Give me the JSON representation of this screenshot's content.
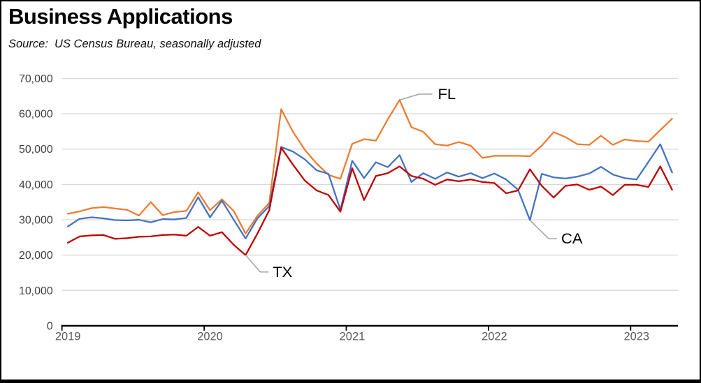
{
  "chart_data": {
    "type": "line",
    "title": "Business Applications",
    "subtitle": "Source:  US Census Bureau, seasonally adjusted",
    "categories": [
      "2019-01",
      "2019-02",
      "2019-03",
      "2019-04",
      "2019-05",
      "2019-06",
      "2019-07",
      "2019-08",
      "2019-09",
      "2019-10",
      "2019-11",
      "2019-12",
      "2020-01",
      "2020-02",
      "2020-03",
      "2020-04",
      "2020-05",
      "2020-06",
      "2020-07",
      "2020-08",
      "2020-09",
      "2020-10",
      "2020-11",
      "2020-12",
      "2021-01",
      "2021-02",
      "2021-03",
      "2021-04",
      "2021-05",
      "2021-06",
      "2021-07",
      "2021-08",
      "2021-09",
      "2021-10",
      "2021-11",
      "2021-12",
      "2022-01",
      "2022-02",
      "2022-03",
      "2022-04",
      "2022-05",
      "2022-06",
      "2022-07",
      "2022-08",
      "2022-09",
      "2022-10",
      "2022-11",
      "2022-12",
      "2023-01",
      "2023-02",
      "2023-03",
      "2023-04"
    ],
    "series": [
      {
        "name": "FL",
        "color": "#ED7D31",
        "values": [
          31700,
          32400,
          33300,
          33600,
          33200,
          32800,
          31200,
          35000,
          31300,
          32200,
          32500,
          37800,
          32700,
          35800,
          32500,
          26100,
          31100,
          34800,
          61300,
          54900,
          49800,
          45900,
          42700,
          41600,
          51500,
          52800,
          52400,
          58400,
          63900,
          56200,
          54900,
          51400,
          51000,
          52000,
          51000,
          47500,
          48100,
          48100,
          48100,
          48000,
          51000,
          54800,
          53400,
          51400,
          51200,
          53800,
          51200,
          52700,
          52300,
          52100,
          55400,
          58600
        ]
      },
      {
        "name": "CA",
        "color": "#4472C4",
        "values": [
          28100,
          30300,
          30700,
          30400,
          29900,
          29800,
          30000,
          29300,
          30200,
          30100,
          30500,
          36400,
          30700,
          35400,
          30000,
          24700,
          30400,
          33900,
          50600,
          49300,
          47100,
          44000,
          43000,
          32800,
          46700,
          41800,
          46300,
          44900,
          48300,
          40700,
          43200,
          41600,
          43400,
          42200,
          43200,
          41800,
          43100,
          41400,
          38500,
          29900,
          43000,
          42000,
          41700,
          42200,
          43100,
          45000,
          42800,
          41800,
          41400,
          46400,
          51400,
          43400
        ]
      },
      {
        "name": "TX",
        "color": "#C00000",
        "values": [
          23500,
          25300,
          25600,
          25700,
          24600,
          24800,
          25200,
          25300,
          25700,
          25800,
          25500,
          28000,
          25500,
          26500,
          22900,
          20000,
          26100,
          32700,
          50400,
          45600,
          41100,
          38300,
          37000,
          32300,
          44600,
          35600,
          42400,
          43200,
          45100,
          42400,
          41600,
          39900,
          41400,
          40900,
          41400,
          40700,
          40400,
          37500,
          38300,
          44300,
          39600,
          36300,
          39600,
          40000,
          38500,
          39400,
          37000,
          39900,
          39900,
          39300,
          45100,
          38500
        ]
      }
    ],
    "ylim": [
      0,
      70000
    ],
    "ytick_step": 10000,
    "ytick_labels": [
      "0",
      "10,000",
      "20,000",
      "30,000",
      "40,000",
      "50,000",
      "60,000",
      "70,000"
    ],
    "xtick_labels": [
      "2019",
      "2020",
      "2021",
      "2022",
      "2023"
    ],
    "grid": "horizontal",
    "legend_position": "none (series labeled directly on chart)",
    "annotations": [
      {
        "label": "FL",
        "series": "FL",
        "point": "2021-05",
        "point_index": 28
      },
      {
        "label": "CA",
        "series": "CA",
        "point": "2022-04",
        "point_index": 39
      },
      {
        "label": "TX",
        "series": "TX",
        "point": "2020-04",
        "point_index": 15
      }
    ],
    "colors": {
      "gridline": "#D9D9D9",
      "axis": "#000000",
      "leader_line": "#A6A6A6",
      "ytick_text": "#404040",
      "xtick_text": "#595959",
      "annotation_text": "#000000",
      "title_text": "#000000"
    }
  }
}
